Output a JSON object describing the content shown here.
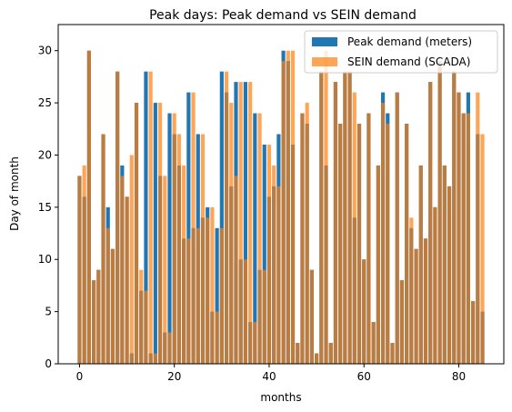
{
  "chart_data": {
    "type": "bar",
    "title": "Peak days: Peak demand vs SEIN demand",
    "xlabel": "months",
    "ylabel": "Day of month",
    "xlim": [
      -4.5,
      89.5
    ],
    "ylim": [
      0,
      32.5
    ],
    "xticks": [
      0,
      20,
      40,
      60,
      80
    ],
    "yticks": [
      0,
      5,
      10,
      15,
      20,
      25,
      30
    ],
    "grid": false,
    "legend_position": "top-right",
    "x": [
      0,
      1,
      2,
      3,
      4,
      5,
      6,
      7,
      8,
      9,
      10,
      11,
      12,
      13,
      14,
      15,
      16,
      17,
      18,
      19,
      20,
      21,
      22,
      23,
      24,
      25,
      26,
      27,
      28,
      29,
      30,
      31,
      32,
      33,
      34,
      35,
      36,
      37,
      38,
      39,
      40,
      41,
      42,
      43,
      44,
      45,
      46,
      47,
      48,
      49,
      50,
      51,
      52,
      53,
      54,
      55,
      56,
      57,
      58,
      59,
      60,
      61,
      62,
      63,
      64,
      65,
      66,
      67,
      68,
      69,
      70,
      71,
      72,
      73,
      74,
      75,
      76,
      77,
      78,
      79,
      80,
      81,
      82,
      83,
      84,
      85
    ],
    "series": [
      {
        "name": "Peak demand (meters)",
        "color": "#1f77b4",
        "values": [
          18,
          16,
          30,
          8,
          9,
          22,
          15,
          11,
          28,
          19,
          16,
          1,
          25,
          7,
          28,
          1,
          25,
          18,
          3,
          24,
          22,
          19,
          12,
          26,
          13,
          22,
          14,
          15,
          5,
          13,
          28,
          26,
          17,
          27,
          10,
          27,
          4,
          24,
          9,
          21,
          16,
          17,
          22,
          30,
          29,
          21,
          2,
          24,
          23,
          9,
          1,
          28,
          19,
          2,
          27,
          23,
          28,
          28,
          14,
          23,
          10,
          24,
          4,
          19,
          26,
          24,
          2,
          26,
          8,
          23,
          13,
          11,
          19,
          12,
          27,
          15,
          29,
          19,
          17,
          28,
          26,
          24,
          26,
          6,
          22,
          5
        ]
      },
      {
        "name": "SEIN demand (SCADA)",
        "color": "#ff7f0e",
        "values": [
          18,
          19,
          30,
          8,
          9,
          22,
          13,
          11,
          28,
          18,
          16,
          20,
          25,
          9,
          7,
          28,
          1,
          25,
          18,
          3,
          24,
          22,
          19,
          12,
          26,
          13,
          22,
          14,
          15,
          5,
          13,
          28,
          25,
          18,
          27,
          10,
          27,
          4,
          24,
          9,
          21,
          19,
          17,
          29,
          30,
          30,
          2,
          24,
          25,
          9,
          1,
          28,
          30,
          2,
          27,
          23,
          28,
          28,
          26,
          23,
          10,
          24,
          4,
          19,
          25,
          23,
          2,
          26,
          8,
          23,
          14,
          11,
          19,
          12,
          27,
          15,
          29,
          19,
          17,
          28,
          26,
          24,
          24,
          6,
          26,
          22
        ]
      }
    ]
  }
}
